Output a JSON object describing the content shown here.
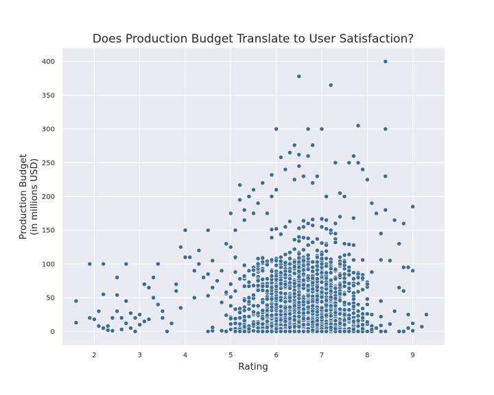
{
  "chart_data": {
    "type": "scatter",
    "title": "Does Production Budget Translate to User Satisfaction?",
    "xlabel": "Rating",
    "ylabel_lines": [
      "Production Budget",
      "(in millions USD)"
    ],
    "xlim": [
      1.3,
      9.7
    ],
    "ylim": [
      -20,
      420
    ],
    "xticks": [
      2,
      3,
      4,
      5,
      6,
      7,
      8,
      9
    ],
    "yticks": [
      0,
      50,
      100,
      150,
      200,
      250,
      300,
      350,
      400
    ],
    "grid": true,
    "background": "#eaeaf2",
    "point_color": "#3b6d99",
    "points": [
      [
        1.6,
        45
      ],
      [
        1.6,
        13
      ],
      [
        1.9,
        100
      ],
      [
        1.9,
        20
      ],
      [
        2.0,
        18
      ],
      [
        2.1,
        8
      ],
      [
        2.1,
        30
      ],
      [
        2.2,
        100
      ],
      [
        2.2,
        55
      ],
      [
        2.2,
        5
      ],
      [
        2.3,
        2
      ],
      [
        2.3,
        8
      ],
      [
        2.4,
        20
      ],
      [
        2.4,
        1
      ],
      [
        2.5,
        80
      ],
      [
        2.5,
        54
      ],
      [
        2.5,
        30
      ],
      [
        2.6,
        3
      ],
      [
        2.6,
        20
      ],
      [
        2.7,
        100
      ],
      [
        2.7,
        45
      ],
      [
        2.7,
        12
      ],
      [
        2.8,
        5
      ],
      [
        2.8,
        27
      ],
      [
        2.9,
        20
      ],
      [
        2.9,
        0
      ],
      [
        3.0,
        25
      ],
      [
        3.0,
        10
      ],
      [
        3.1,
        70
      ],
      [
        3.1,
        15
      ],
      [
        3.2,
        65
      ],
      [
        3.2,
        18
      ],
      [
        3.3,
        80
      ],
      [
        3.3,
        50
      ],
      [
        3.4,
        100
      ],
      [
        3.4,
        40
      ],
      [
        3.5,
        30
      ],
      [
        3.5,
        20
      ],
      [
        3.6,
        0
      ],
      [
        3.7,
        12
      ],
      [
        3.8,
        70
      ],
      [
        3.8,
        60
      ],
      [
        3.9,
        125
      ],
      [
        3.9,
        35
      ],
      [
        4.0,
        110
      ],
      [
        4.0,
        150
      ],
      [
        4.1,
        110
      ],
      [
        4.2,
        90
      ],
      [
        4.2,
        50
      ],
      [
        4.3,
        120
      ],
      [
        4.3,
        100
      ],
      [
        4.4,
        80
      ],
      [
        4.5,
        150
      ],
      [
        4.5,
        85
      ],
      [
        4.6,
        105
      ],
      [
        4.6,
        65
      ],
      [
        4.7,
        75
      ],
      [
        4.8,
        90
      ],
      [
        4.9,
        130
      ],
      [
        5.0,
        175
      ],
      [
        5.0,
        125
      ],
      [
        5.1,
        150
      ],
      [
        5.1,
        110
      ],
      [
        5.2,
        217
      ],
      [
        5.2,
        195
      ],
      [
        5.3,
        180
      ],
      [
        5.3,
        165
      ],
      [
        5.4,
        200
      ],
      [
        5.5,
        210
      ],
      [
        5.5,
        175
      ],
      [
        5.6,
        190
      ],
      [
        5.7,
        220
      ],
      [
        5.8,
        175
      ],
      [
        5.9,
        200
      ],
      [
        5.9,
        232
      ],
      [
        6.0,
        300
      ],
      [
        6.0,
        210
      ],
      [
        6.1,
        258
      ],
      [
        6.2,
        240
      ],
      [
        6.3,
        265
      ],
      [
        6.4,
        276
      ],
      [
        6.4,
        225
      ],
      [
        6.5,
        378
      ],
      [
        6.5,
        262
      ],
      [
        6.5,
        245
      ],
      [
        6.6,
        230
      ],
      [
        6.7,
        300
      ],
      [
        6.7,
        260
      ],
      [
        6.8,
        276
      ],
      [
        6.8,
        220
      ],
      [
        6.9,
        230
      ],
      [
        7.0,
        300
      ],
      [
        7.1,
        200
      ],
      [
        7.2,
        365
      ],
      [
        7.3,
        250
      ],
      [
        7.4,
        205
      ],
      [
        7.5,
        200
      ],
      [
        7.6,
        250
      ],
      [
        7.7,
        260
      ],
      [
        7.8,
        305
      ],
      [
        7.8,
        250
      ],
      [
        7.9,
        240
      ],
      [
        8.0,
        225
      ],
      [
        8.1,
        190
      ],
      [
        8.2,
        175
      ],
      [
        8.3,
        145
      ],
      [
        8.4,
        400
      ],
      [
        8.4,
        300
      ],
      [
        8.4,
        230
      ],
      [
        8.4,
        180
      ],
      [
        8.5,
        105
      ],
      [
        8.6,
        165
      ],
      [
        8.7,
        130
      ],
      [
        8.8,
        160
      ],
      [
        8.8,
        95
      ],
      [
        8.9,
        95
      ],
      [
        9.0,
        185
      ],
      [
        9.0,
        90
      ],
      [
        8.7,
        65
      ],
      [
        8.8,
        60
      ],
      [
        8.6,
        30
      ],
      [
        8.9,
        25
      ],
      [
        9.0,
        12
      ],
      [
        9.0,
        1
      ],
      [
        9.2,
        7
      ],
      [
        9.3,
        25
      ],
      [
        8.9,
        5
      ],
      [
        8.8,
        0
      ]
    ],
    "dense_regions": [
      {
        "x_range": [
          3.0,
          9.0
        ],
        "peak_x": 6.6,
        "spread": 1.25,
        "y_max": 110,
        "count": 1900
      },
      {
        "x_range": [
          4.5,
          8.6
        ],
        "peak_x": 6.8,
        "spread": 0.9,
        "y_max": 170,
        "count": 450
      }
    ]
  }
}
